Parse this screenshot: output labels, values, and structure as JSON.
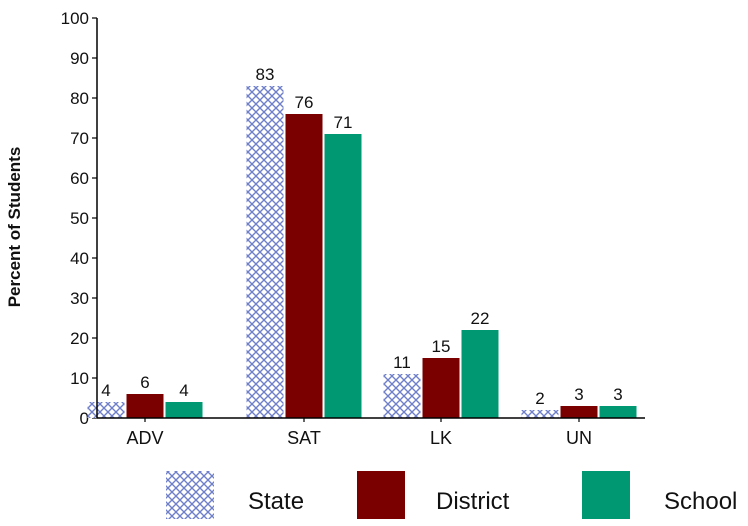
{
  "chart_data": {
    "type": "bar",
    "categories": [
      "ADV",
      "SAT",
      "LK",
      "UN"
    ],
    "series": [
      {
        "name": "State",
        "values": [
          4,
          83,
          11,
          2
        ],
        "pattern": "crosshatch",
        "color": "#6f7fc9"
      },
      {
        "name": "District",
        "values": [
          6,
          76,
          15,
          3
        ],
        "color": "#7a0000"
      },
      {
        "name": "School",
        "values": [
          4,
          71,
          22,
          3
        ],
        "color": "#009872"
      }
    ],
    "ylabel": "Percent of Students",
    "xlabel": "",
    "ylim": [
      0,
      100
    ],
    "yticks": [
      "0",
      "10",
      "20",
      "30",
      "40",
      "50",
      "60",
      "70",
      "80",
      "90",
      "100"
    ],
    "data_labels": [
      [
        "4",
        "6",
        "4"
      ],
      [
        "83",
        "76",
        "71"
      ],
      [
        "11",
        "15",
        "22"
      ],
      [
        "2",
        "3",
        "3"
      ]
    ],
    "grid": false,
    "legend_position": "bottom"
  }
}
